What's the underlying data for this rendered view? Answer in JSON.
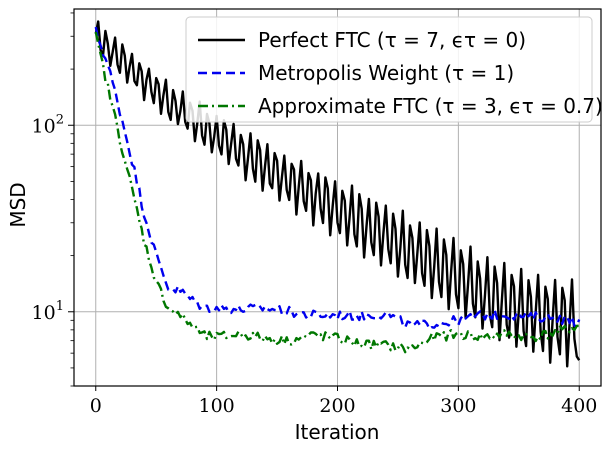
{
  "chart_data": {
    "type": "line",
    "title": "",
    "xlabel": "Iteration",
    "ylabel": "MSD",
    "yscale": "log",
    "xlim": [
      -18,
      418
    ],
    "ylim": [
      4.0,
      420
    ],
    "grid": true,
    "legend_position": "top-right",
    "x_ticks": [
      0,
      100,
      200,
      300,
      400
    ],
    "x_tick_labels": [
      "0",
      "100",
      "200",
      "300",
      "400"
    ],
    "y_ticks": [
      10,
      100
    ],
    "y_tick_labels": [
      "10",
      "100"
    ],
    "series": [
      {
        "name": "Perfect FTC (τ = 7, ϵτ = 0)",
        "color": "#000000",
        "dash": "solid",
        "anchors": [
          [
            0,
            300
          ],
          [
            10,
            260
          ],
          [
            20,
            230
          ],
          [
            40,
            175
          ],
          [
            60,
            135
          ],
          [
            80,
            108
          ],
          [
            100,
            88
          ],
          [
            120,
            72
          ],
          [
            140,
            60
          ],
          [
            160,
            50
          ],
          [
            180,
            42
          ],
          [
            200,
            36
          ],
          [
            220,
            30
          ],
          [
            240,
            25.5
          ],
          [
            260,
            21.5
          ],
          [
            280,
            18
          ],
          [
            300,
            15
          ],
          [
            320,
            12.5
          ],
          [
            340,
            11
          ],
          [
            360,
            9.8
          ],
          [
            380,
            9.0
          ],
          [
            400,
            8.8
          ]
        ],
        "osc_period": 7,
        "osc_amp_start": 0.18,
        "osc_amp_end": 0.55,
        "last_value": 5.5
      },
      {
        "name": "Metropolis Weight (τ = 1)",
        "color": "#0000ee",
        "dash": "dashed",
        "anchors": [
          [
            0,
            320
          ],
          [
            10,
            210
          ],
          [
            20,
            120
          ],
          [
            30,
            65
          ],
          [
            40,
            34
          ],
          [
            50,
            20
          ],
          [
            60,
            13.5
          ],
          [
            70,
            13
          ],
          [
            80,
            11.5
          ],
          [
            90,
            10.5
          ],
          [
            100,
            10.5
          ],
          [
            120,
            10.3
          ],
          [
            140,
            10.5
          ],
          [
            160,
            10.0
          ],
          [
            180,
            9.6
          ],
          [
            200,
            9.6
          ],
          [
            220,
            9.5
          ],
          [
            240,
            9.8
          ],
          [
            260,
            8.4
          ],
          [
            280,
            8.6
          ],
          [
            300,
            9.0
          ],
          [
            320,
            9.6
          ],
          [
            340,
            9.7
          ],
          [
            360,
            9.4
          ],
          [
            380,
            9.3
          ],
          [
            400,
            8.8
          ]
        ],
        "noise": 0.06
      },
      {
        "name": "Approximate FTC (τ = 3, ϵτ = 0.7)",
        "color": "#007700",
        "dash": "dashdot",
        "anchors": [
          [
            0,
            300
          ],
          [
            10,
            160
          ],
          [
            20,
            85
          ],
          [
            30,
            45
          ],
          [
            40,
            24
          ],
          [
            50,
            14.5
          ],
          [
            60,
            10.5
          ],
          [
            70,
            9.5
          ],
          [
            80,
            8.4
          ],
          [
            90,
            7.4
          ],
          [
            100,
            7.3
          ],
          [
            120,
            7.6
          ],
          [
            140,
            7.2
          ],
          [
            160,
            7.0
          ],
          [
            180,
            7.5
          ],
          [
            200,
            7.2
          ],
          [
            220,
            6.7
          ],
          [
            240,
            6.6
          ],
          [
            260,
            6.3
          ],
          [
            280,
            7.3
          ],
          [
            300,
            7.6
          ],
          [
            320,
            7.3
          ],
          [
            340,
            7.6
          ],
          [
            360,
            7.3
          ],
          [
            380,
            7.7
          ],
          [
            400,
            8.4
          ]
        ],
        "noise": 0.06
      }
    ]
  }
}
